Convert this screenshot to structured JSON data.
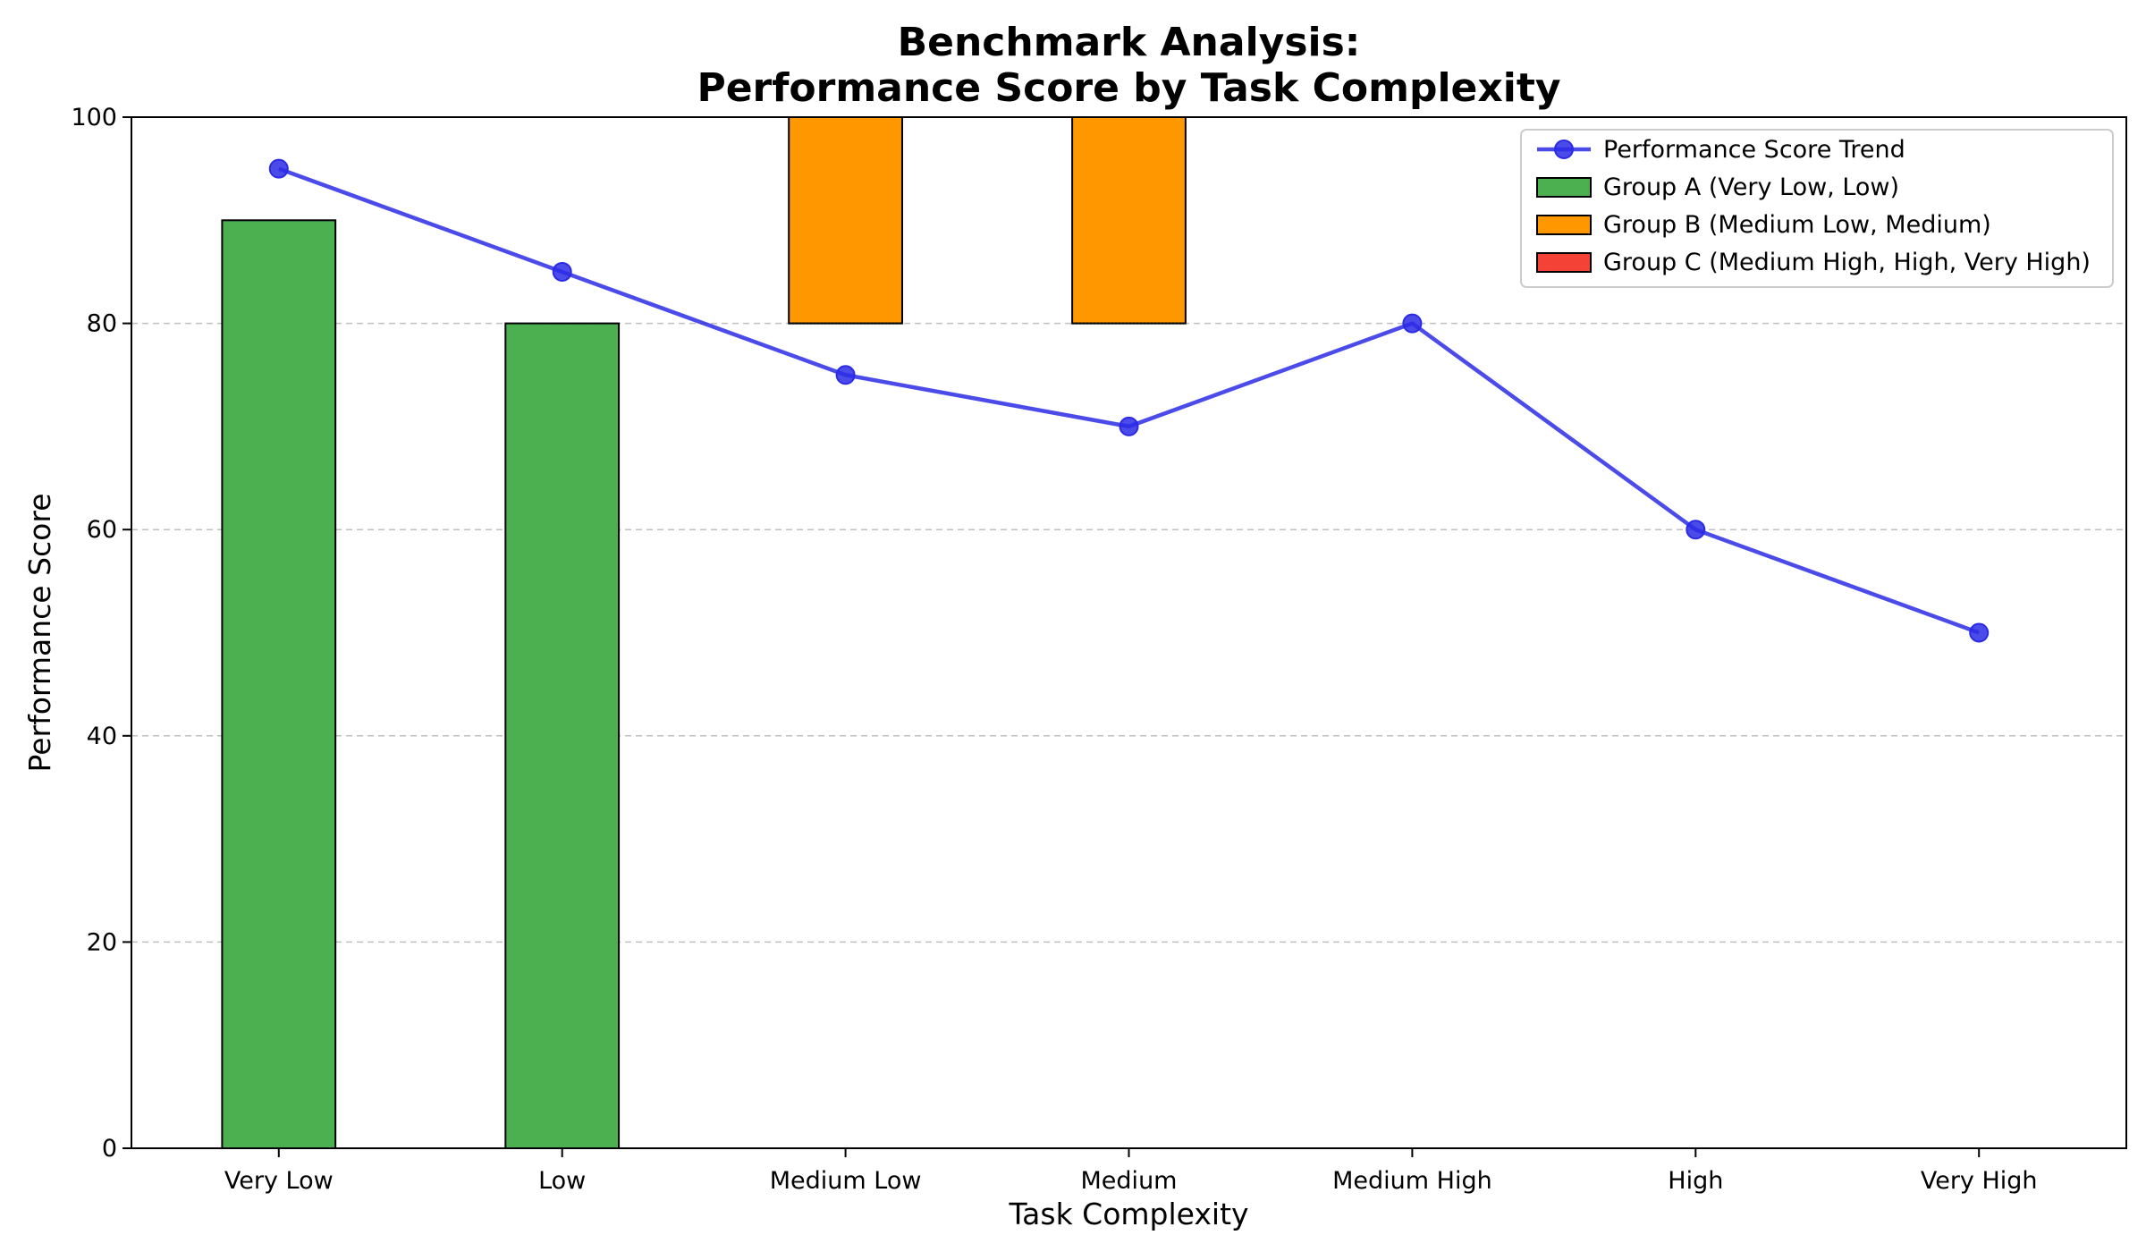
{
  "chart_data": {
    "type": "bar",
    "title": [
      "Benchmark Analysis:",
      "Performance Score by Task Complexity"
    ],
    "xlabel": "Task Complexity",
    "ylabel": "Performance Score",
    "categories": [
      "Very Low",
      "Low",
      "Medium Low",
      "Medium",
      "Medium High",
      "High",
      "Very High"
    ],
    "ylim": [
      0,
      100
    ],
    "yticks": [
      0,
      20,
      40,
      60,
      80,
      100
    ],
    "grid": "y-dashed",
    "legend_placement": "upper right",
    "bars": [
      {
        "category": "Very Low",
        "group": 0,
        "bottom": 0,
        "top": 90
      },
      {
        "category": "Low",
        "group": 0,
        "bottom": 0,
        "top": 80
      },
      {
        "category": "Medium Low",
        "group": 1,
        "bottom": 80,
        "top": 100
      },
      {
        "category": "Medium",
        "group": 1,
        "bottom": 80,
        "top": 100
      }
    ],
    "groups": [
      {
        "name": "Group A (Very Low, Low)",
        "color": "#4caf50"
      },
      {
        "name": "Group B (Medium Low, Medium)",
        "color": "#ff9800"
      },
      {
        "name": "Group C (Medium High, High, Very High)",
        "color": "#f44336"
      }
    ],
    "series": [
      {
        "name": "Performance Score Trend",
        "type": "line",
        "color": "#2b2be6",
        "values": [
          95,
          85,
          75,
          70,
          80,
          60,
          50
        ]
      }
    ]
  }
}
